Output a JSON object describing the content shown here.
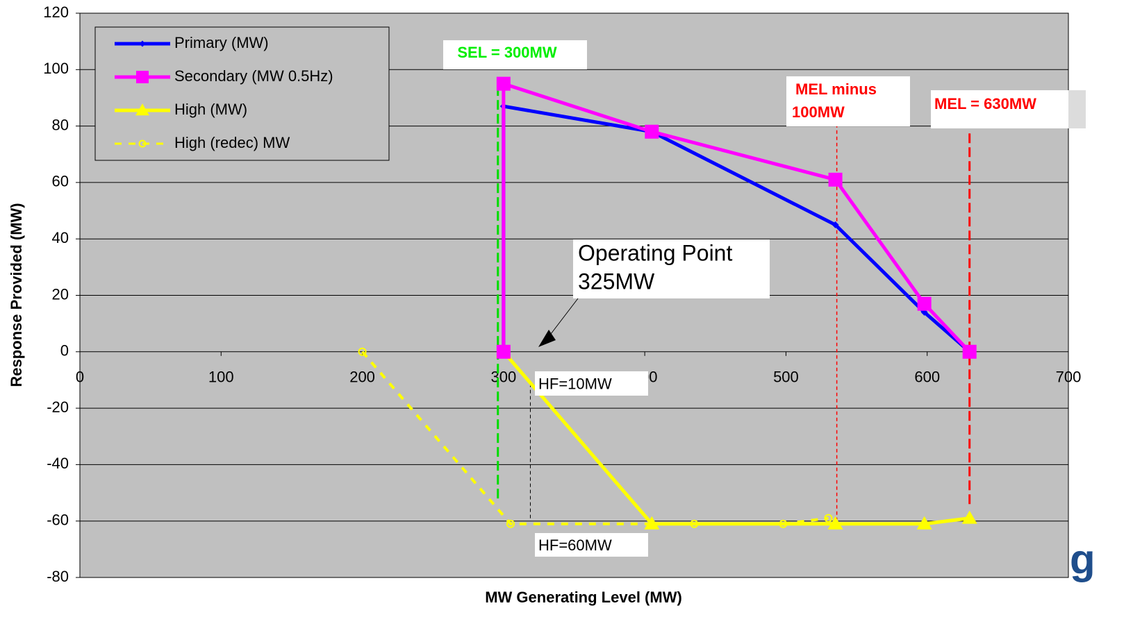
{
  "chart_data": {
    "type": "line",
    "x_label": "MW Generating Level (MW)",
    "y_label": "Response Provided (MW)",
    "xlim": [
      0,
      700
    ],
    "xticks": [
      0,
      100,
      200,
      300,
      400,
      500,
      600,
      700
    ],
    "ylim": [
      -80,
      120
    ],
    "yticks": [
      -80,
      -60,
      -40,
      -20,
      0,
      20,
      40,
      60,
      80,
      100,
      120
    ],
    "grid": true,
    "legend": "top-left",
    "series": [
      {
        "name": "Primary (MW)",
        "color": "#0000ff",
        "marker": "diamond",
        "dash": false,
        "x": [
          300,
          300,
          405,
          535,
          598,
          630
        ],
        "values": [
          0,
          87,
          78,
          45,
          14,
          0
        ]
      },
      {
        "name": "Secondary (MW 0.5Hz)",
        "color": "#ff00ff",
        "marker": "square",
        "dash": false,
        "x": [
          300,
          300,
          405,
          535,
          598,
          630
        ],
        "values": [
          0,
          95,
          78,
          61,
          17,
          0
        ]
      },
      {
        "name": "High (MW)",
        "color": "#ffff00",
        "marker": "triangle",
        "dash": false,
        "x": [
          300,
          405,
          535,
          598,
          630
        ],
        "values": [
          0,
          -61,
          -61,
          -61,
          -59
        ]
      },
      {
        "name": "High (redec) MW",
        "color": "#ffff00",
        "marker": "circle",
        "dash": true,
        "x": [
          200,
          305,
          435,
          498,
          530
        ],
        "values": [
          0,
          -61,
          -61,
          -61,
          -59
        ]
      }
    ],
    "reference_lines": [
      {
        "x": 296,
        "y": [
          -52,
          93
        ],
        "color": "#00dd00",
        "width": 3
      },
      {
        "x": 536,
        "y": [
          -60,
          88
        ],
        "color": "#ff0000",
        "width": 1.5
      },
      {
        "x": 630,
        "y": [
          -54,
          78
        ],
        "color": "#ff0000",
        "width": 3
      },
      {
        "x": 319,
        "y": [
          -59,
          -12
        ],
        "color": "#000000",
        "width": 1
      }
    ],
    "annotations": [
      "SEL = 300MW",
      "MEL minus",
      "100MW",
      "MEL = 630MW",
      "Operating Point",
      "325MW",
      "HF=10MW",
      "HF=60MW"
    ],
    "logo": "g"
  }
}
